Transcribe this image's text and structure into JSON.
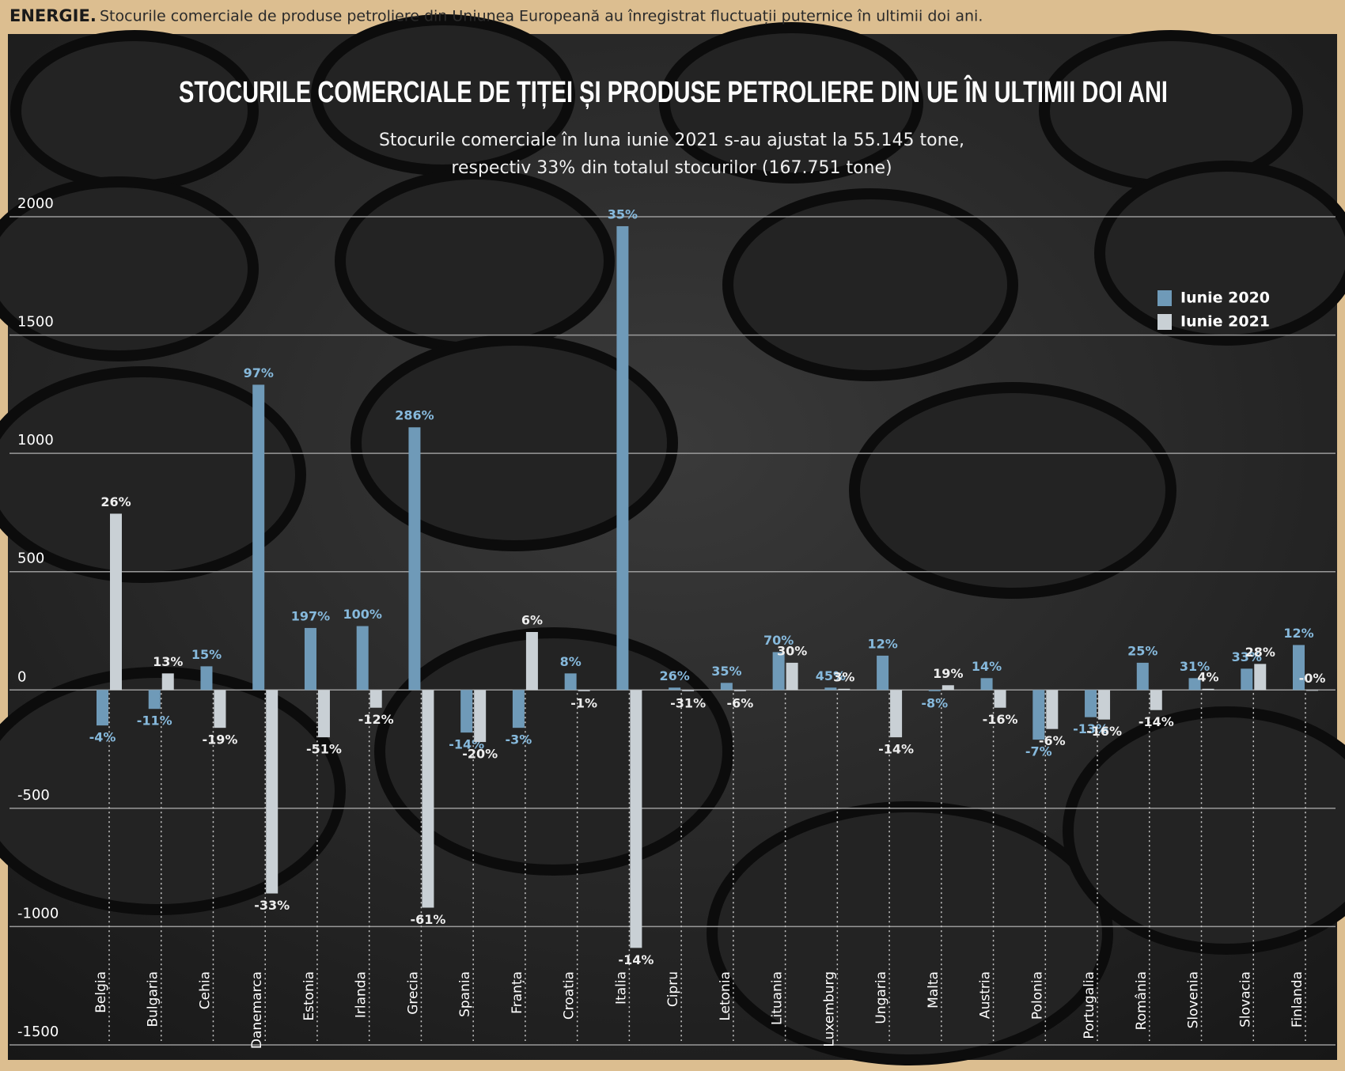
{
  "chart_data": {
    "type": "bar",
    "caption_label": "ENERGIE.",
    "caption": "Stocurile comerciale de produse petroliere din Uniunea Europeană au înregistrat fluctuații puternice în ultimii doi ani.",
    "title": "STOCURILE COMERCIALE DE ȚIȚEI ȘI PRODUSE PETROLIERE DIN UE ÎN ULTIMII DOI ANI",
    "subtitle": [
      "Stocurile comerciale în luna iunie 2021 s-au ajustat la 55.145 tone,",
      "respectiv 33% din totalul stocurilor (167.751 tone)"
    ],
    "categories": [
      "Belgia",
      "Bulgaria",
      "Cehia",
      "Danemarca",
      "Estonia",
      "Irlanda",
      "Grecia",
      "Spania",
      "Franța",
      "Croatia",
      "Italia",
      "Cipru",
      "Letonia",
      "Lituania",
      "Luxemburg",
      "Ungaria",
      "Malta",
      "Austria",
      "Polonia",
      "Portugalia",
      "România",
      "Slovenia",
      "Slovacia",
      "Finlanda"
    ],
    "series": [
      {
        "name": "Iunie 2020",
        "color": "#6f9ab8",
        "label_color": "#86b9dc",
        "values": [
          -150,
          -80,
          100,
          1290,
          262,
          270,
          1110,
          -180,
          -160,
          70,
          1960,
          10,
          30,
          160,
          10,
          145,
          -5,
          50,
          -210,
          -115,
          115,
          50,
          90,
          190
        ],
        "labels": [
          "-4%",
          "-11%",
          "15%",
          "97%",
          "197%",
          "100%",
          "286%",
          "-14%",
          "-3%",
          "8%",
          "35%",
          "26%",
          "35%",
          "70%",
          "45%",
          "12%",
          "-8%",
          "14%",
          "-7%",
          "-13%",
          "25%",
          "31%",
          "33%",
          "12%"
        ]
      },
      {
        "name": "Iunie 2021",
        "color": "#c9d0d5",
        "label_color": "#eeeeee",
        "values": [
          745,
          70,
          -160,
          -860,
          -200,
          -75,
          -920,
          -220,
          245,
          -5,
          -1090,
          -5,
          -5,
          115,
          5,
          -200,
          20,
          -75,
          -165,
          -125,
          -85,
          5,
          110,
          0
        ],
        "labels": [
          "26%",
          "13%",
          "-19%",
          "-33%",
          "-51%",
          "-12%",
          "-61%",
          "-20%",
          "6%",
          "-1%",
          "-14%",
          "-31%",
          "-6%",
          "30%",
          "3%",
          "-14%",
          "19%",
          "-16%",
          "-6%",
          "-16%",
          "-14%",
          "4%",
          "28%",
          "-0%"
        ]
      }
    ],
    "ylim": [
      -1500,
      2000
    ],
    "yticks": [
      -1500,
      -1000,
      -500,
      0,
      500,
      1000,
      1500,
      2000
    ],
    "grid": true
  }
}
